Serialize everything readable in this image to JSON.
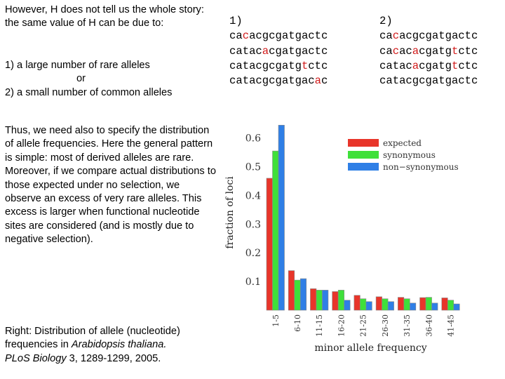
{
  "left_text": {
    "intro": "However, H does not tell us the whole story: the same value of H can be due to:",
    "option1": "1) a large number of rare alleles",
    "or": "or",
    "option2": "2) a small number of common alleles",
    "thus": "Thus, we need also to specify the distribution of allele frequencies. Here the general pattern is simple: most of derived alleles are rare. Moreover, if we compare actual distributions to those expected under no selection, we observe an excess of very rare alleles. This excess is larger when functional nucleotide sites are considered (and is mostly due to negative selection).",
    "caption_prefix": "Right: Distribution of allele (nucleotide) frequencies in ",
    "caption_species": "Arabidopsis thaliana.",
    "caption_journal": "PLoS Biology",
    "caption_ref": " 3, 1289-1299, 2005."
  },
  "sequences": [
    {
      "label": "1)",
      "lines": [
        {
          "before": "ca",
          "hl": "c",
          "after": "acgcgatgactc"
        },
        {
          "before": "catac",
          "hl": "a",
          "after": "cgatgactc"
        },
        {
          "before": "catacgcgatg",
          "hl": "t",
          "after": "ctc"
        },
        {
          "before": "catacgcgatgac",
          "hl": "a",
          "after": "c"
        }
      ]
    },
    {
      "label": "2)",
      "lines": [
        {
          "before": "ca",
          "hl": "c",
          "after": "acgcgatgactc"
        },
        {
          "before": "ca",
          "hl": "c",
          "after": "ac",
          "hl2": "a",
          "after2": "cgatg",
          "hl3": "t",
          "after3": "ctc"
        },
        {
          "before": "catac",
          "hl": "a",
          "after": "cgatg",
          "hl2": "t",
          "after2": "ctc"
        },
        {
          "before": "catacgcgatgactc",
          "hl": "",
          "after": ""
        }
      ]
    }
  ],
  "chart_data": {
    "type": "bar",
    "title": "",
    "xlabel": "minor allele frequency",
    "ylabel": "fraction of loci",
    "ylim": [
      0,
      0.68
    ],
    "yticks": [
      "0.1",
      "0.2",
      "0.3",
      "0.4",
      "0.5",
      "0.6"
    ],
    "categories": [
      "1-5",
      "6-10",
      "11-15",
      "16-20",
      "21-25",
      "26-30",
      "31-35",
      "36-40",
      "41-45"
    ],
    "series": [
      {
        "name": "expected",
        "color": "#e8352a",
        "values": [
          0.46,
          0.138,
          0.075,
          0.065,
          0.052,
          0.047,
          0.045,
          0.044,
          0.043
        ]
      },
      {
        "name": "synonymous",
        "color": "#3fe03a",
        "values": [
          0.555,
          0.105,
          0.07,
          0.07,
          0.04,
          0.04,
          0.04,
          0.045,
          0.035
        ]
      },
      {
        "name": "non−synonymous",
        "color": "#2f7fe6",
        "values": [
          0.645,
          0.11,
          0.07,
          0.035,
          0.03,
          0.03,
          0.025,
          0.025,
          0.022
        ]
      }
    ],
    "legend_position": "top-right"
  }
}
